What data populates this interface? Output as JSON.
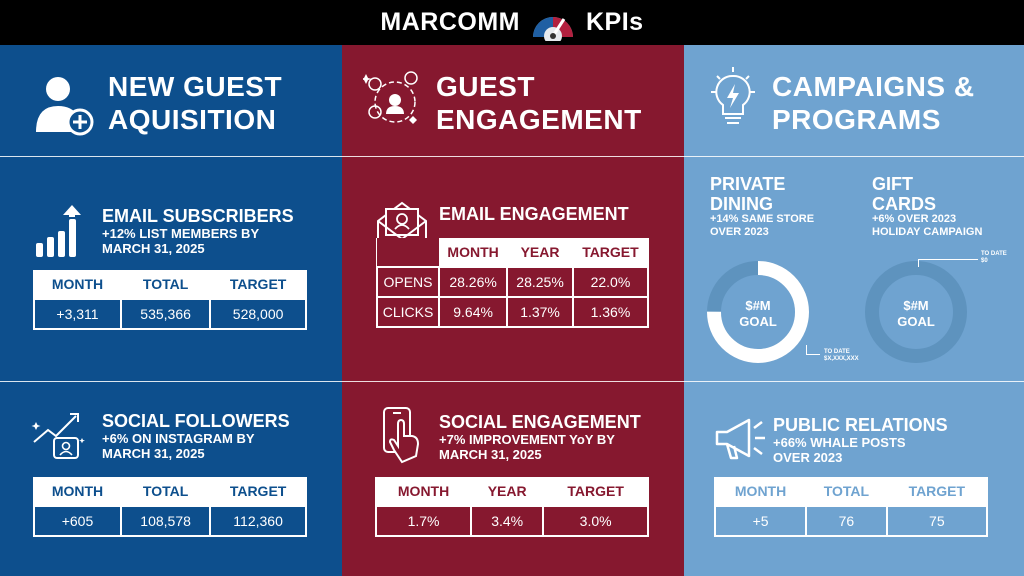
{
  "header": {
    "left": "MARCOMM",
    "right": "KPIs",
    "icon": "gauge-icon"
  },
  "colors": {
    "blue": "#0d4f8d",
    "red": "#86182f",
    "light_blue": "#6fa3d0"
  },
  "columns": {
    "acquisition": {
      "title_line1": "NEW GUEST",
      "title_line2": "AQUISITION",
      "icon": "add-user-icon"
    },
    "engagement": {
      "title_line1": "GUEST",
      "title_line2": "ENGAGEMENT",
      "icon": "network-people-icon"
    },
    "campaigns": {
      "title_line1": "CAMPAIGNS &",
      "title_line2": "PROGRAMS",
      "icon": "lightbulb-icon"
    }
  },
  "email_subscribers": {
    "title": "EMAIL SUBSCRIBERS",
    "sub_line1": "+12% LIST MEMBERS BY",
    "sub_line2": "MARCH 31, 2025",
    "headers": [
      "MONTH",
      "TOTAL",
      "TARGET"
    ],
    "values": [
      "+3,311",
      "535,366",
      "528,000"
    ]
  },
  "social_followers": {
    "title": "SOCIAL FOLLOWERS",
    "sub_line1": "+6% ON INSTAGRAM BY",
    "sub_line2": "MARCH 31, 2025",
    "headers": [
      "MONTH",
      "TOTAL",
      "TARGET"
    ],
    "values": [
      "+605",
      "108,578",
      "112,360"
    ]
  },
  "email_engagement": {
    "title": "EMAIL ENGAGEMENT",
    "headers": [
      "MONTH",
      "YEAR",
      "TARGET"
    ],
    "rows": [
      {
        "label": "OPENS",
        "values": [
          "28.26%",
          "28.25%",
          "22.0%"
        ]
      },
      {
        "label": "CLICKS",
        "values": [
          "9.64%",
          "1.37%",
          "1.36%"
        ]
      }
    ]
  },
  "social_engagement": {
    "title": "SOCIAL ENGAGEMENT",
    "sub_line1": "+7% IMPROVEMENT YoY BY",
    "sub_line2": "MARCH 31, 2025",
    "headers": [
      "MONTH",
      "YEAR",
      "TARGET"
    ],
    "values": [
      "1.7%",
      "3.4%",
      "3.0%"
    ]
  },
  "private_dining": {
    "title_line1": "PRIVATE",
    "title_line2": "DINING",
    "sub_line1": "+14% SAME STORE",
    "sub_line2": "OVER 2023",
    "goal_line1": "$#M",
    "goal_line2": "GOAL",
    "to_date_label": "TO DATE",
    "to_date_value": "$X,XXX,XXX",
    "progress_fraction": 0.75
  },
  "gift_cards": {
    "title_line1": "GIFT",
    "title_line2": "CARDS",
    "sub_line1": "+6% OVER 2023",
    "sub_line2": "HOLIDAY CAMPAIGN",
    "goal_line1": "$#M",
    "goal_line2": "GOAL",
    "to_date_label": "TO DATE",
    "to_date_value": "$0",
    "progress_fraction": 0
  },
  "public_relations": {
    "title": "PUBLIC RELATIONS",
    "sub_line1": "+66% WHALE POSTS",
    "sub_line2": "OVER 2023",
    "headers": [
      "MONTH",
      "TOTAL",
      "TARGET"
    ],
    "values": [
      "+5",
      "76",
      "75"
    ]
  }
}
